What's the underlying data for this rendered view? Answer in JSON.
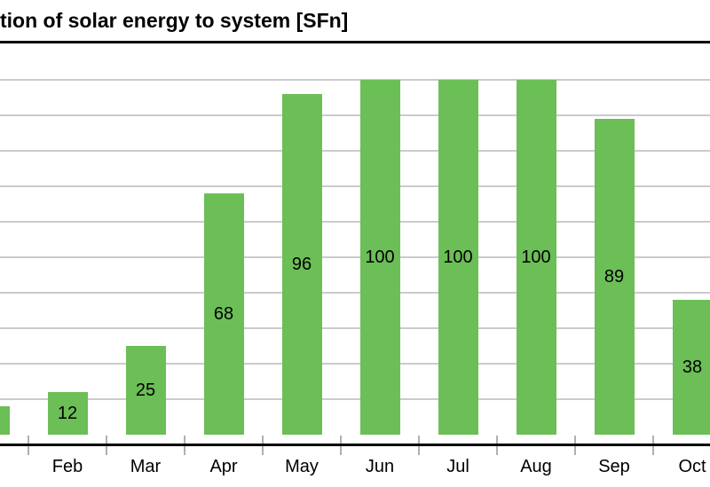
{
  "chart_data": {
    "type": "bar",
    "title": "tion of solar energy to system [SFn]",
    "title_cropped_at_left": true,
    "categories": [
      "Feb",
      "Mar",
      "Apr",
      "May",
      "Jun",
      "Jul",
      "Aug",
      "Sep",
      "Oct"
    ],
    "values": [
      12,
      25,
      68,
      96,
      100,
      100,
      100,
      89,
      38
    ],
    "bar_labels": [
      "12",
      "25",
      "68",
      "96",
      "100",
      "100",
      "100",
      "89",
      "38"
    ],
    "cropped_left_bar": {
      "approx_value": 8,
      "label_visible": false
    },
    "cropped_right_bar": "Oct bar clipped by right image edge",
    "xlabel": "",
    "ylabel": "",
    "ylim": [
      0,
      110
    ],
    "gridline_step": 10,
    "grid": true,
    "legend_position": "none",
    "y_tick_labels_visible": false,
    "colors": {
      "bar": "#6CBE57",
      "gridline": "#cbcbcb",
      "axis_line": "#000000",
      "top_border": "#000000",
      "tick": "#b0b0b0",
      "text": "#000000",
      "background": "#ffffff"
    }
  }
}
